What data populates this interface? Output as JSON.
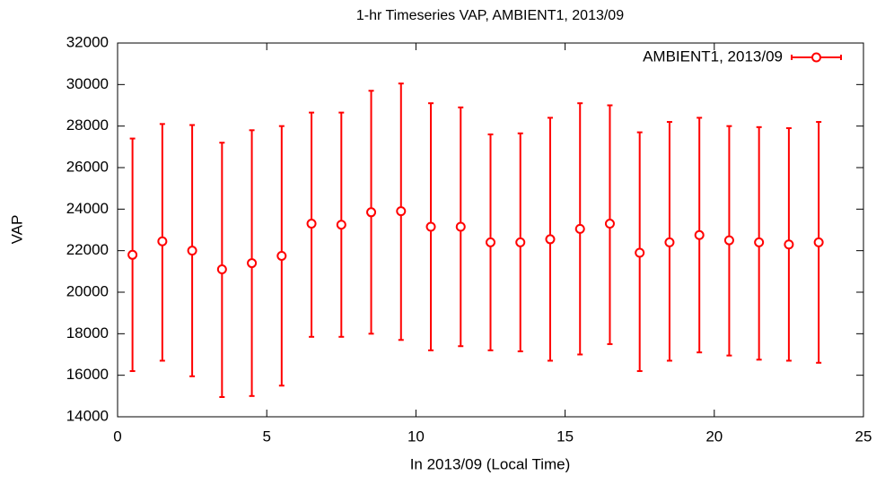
{
  "chart_data": {
    "type": "errorbar",
    "title": "1-hr Timeseries VAP, AMBIENT1, 2013/09",
    "x_label": "In 2013/09 (Local Time)",
    "y_label": "VAP",
    "xlim": [
      0,
      25
    ],
    "xticks": [
      0,
      5,
      10,
      15,
      20,
      25
    ],
    "ylim": [
      14000,
      32000
    ],
    "yticks": [
      14000,
      16000,
      18000,
      20000,
      22000,
      24000,
      26000,
      28000,
      30000,
      32000
    ],
    "grid": false,
    "legend": "upper right",
    "series": [
      {
        "name": "AMBIENT1, 2013/09",
        "color": "#ff0000",
        "x": [
          0.5,
          1.5,
          2.5,
          3.5,
          4.5,
          5.5,
          6.5,
          7.5,
          8.5,
          9.5,
          10.5,
          11.5,
          12.5,
          13.5,
          14.5,
          15.5,
          16.5,
          17.5,
          18.5,
          19.5,
          20.5,
          21.5,
          22.5,
          23.5
        ],
        "values": [
          21800,
          22450,
          22000,
          21100,
          21400,
          21750,
          23300,
          23250,
          23850,
          23900,
          23150,
          23150,
          22400,
          22400,
          22550,
          23050,
          23300,
          21900,
          22400,
          22750,
          22500,
          22400,
          22300,
          22400
        ],
        "low": [
          16200,
          16700,
          15950,
          14950,
          15000,
          15500,
          17850,
          17850,
          18000,
          17700,
          17200,
          17400,
          17200,
          17150,
          16700,
          17000,
          17500,
          16200,
          16700,
          17100,
          16950,
          16750,
          16700,
          16600
        ],
        "high": [
          27400,
          28100,
          28050,
          27200,
          27800,
          28000,
          28650,
          28650,
          29700,
          30050,
          29100,
          28900,
          27600,
          27650,
          28400,
          29100,
          29000,
          27700,
          28200,
          28400,
          28000,
          27950,
          27900,
          28200
        ]
      }
    ]
  }
}
